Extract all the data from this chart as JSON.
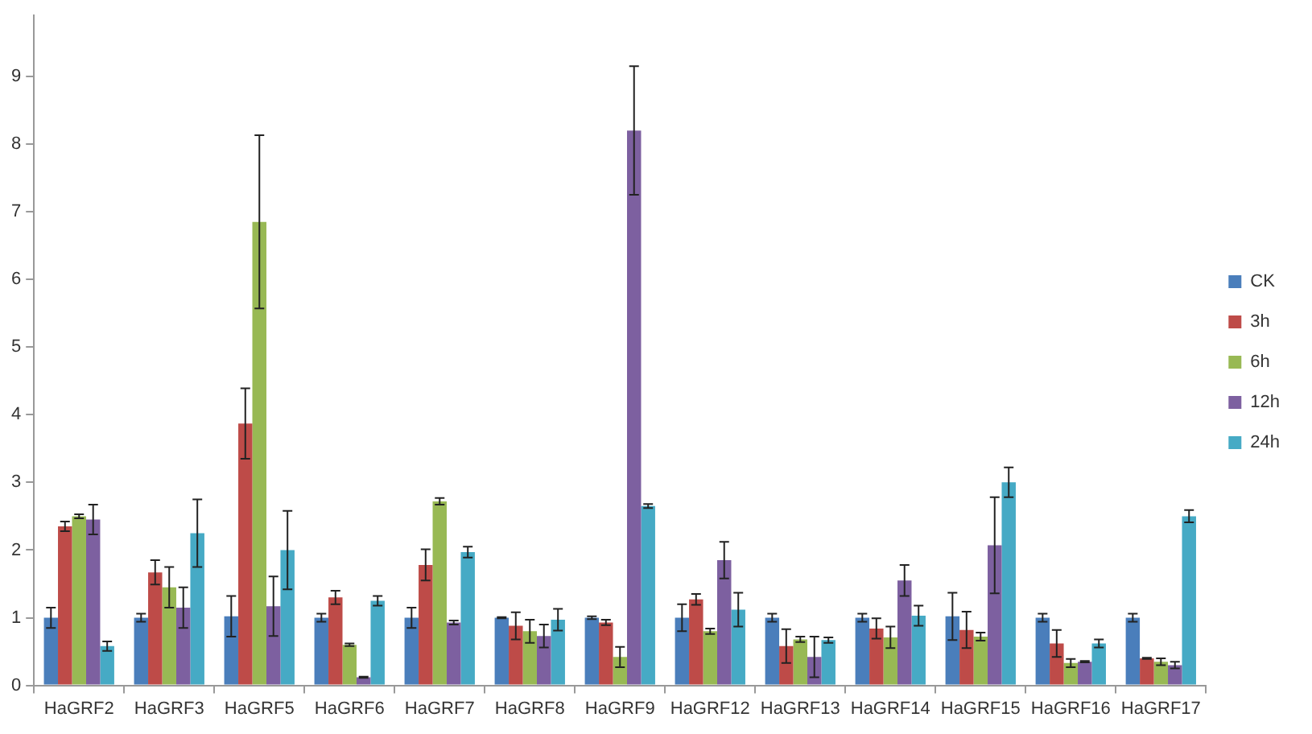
{
  "chart_data": {
    "type": "bar",
    "categories": [
      "HaGRF2",
      "HaGRF3",
      "HaGRF5",
      "HaGRF6",
      "HaGRF7",
      "HaGRF8",
      "HaGRF9",
      "HaGRF12",
      "HaGRF13",
      "HaGRF14",
      "HaGRF15",
      "HaGRF16",
      "HaGRF17"
    ],
    "series": [
      {
        "name": "CK",
        "color": "#4a7ebb",
        "values": [
          1.0,
          1.0,
          1.02,
          1.0,
          1.0,
          1.0,
          1.0,
          1.0,
          1.0,
          1.0,
          1.02,
          1.0,
          1.0
        ],
        "errors": [
          0.15,
          0.06,
          0.3,
          0.06,
          0.15,
          0.01,
          0.02,
          0.2,
          0.06,
          0.06,
          0.35,
          0.06,
          0.06
        ]
      },
      {
        "name": "3h",
        "color": "#be4b48",
        "values": [
          2.35,
          1.67,
          3.87,
          1.3,
          1.78,
          0.88,
          0.93,
          1.27,
          0.58,
          0.84,
          0.82,
          0.62,
          0.4
        ],
        "errors": [
          0.07,
          0.18,
          0.52,
          0.1,
          0.23,
          0.2,
          0.04,
          0.08,
          0.25,
          0.15,
          0.27,
          0.2,
          0.01
        ]
      },
      {
        "name": "6h",
        "color": "#98b954",
        "values": [
          2.5,
          1.45,
          6.85,
          0.6,
          2.72,
          0.8,
          0.42,
          0.8,
          0.68,
          0.71,
          0.72,
          0.33,
          0.35
        ],
        "errors": [
          0.03,
          0.3,
          1.28,
          0.02,
          0.05,
          0.17,
          0.15,
          0.04,
          0.04,
          0.16,
          0.06,
          0.06,
          0.05
        ]
      },
      {
        "name": "12h",
        "color": "#7d60a0",
        "values": [
          2.45,
          1.15,
          1.17,
          0.12,
          0.93,
          0.73,
          8.2,
          1.85,
          0.42,
          1.55,
          2.07,
          0.35,
          0.3
        ],
        "errors": [
          0.22,
          0.3,
          0.44,
          0.01,
          0.03,
          0.17,
          0.95,
          0.27,
          0.3,
          0.23,
          0.71,
          0.01,
          0.05
        ]
      },
      {
        "name": "24h",
        "color": "#46aac5",
        "values": [
          0.58,
          2.25,
          2.0,
          1.25,
          1.97,
          0.97,
          2.65,
          1.12,
          0.67,
          1.03,
          3.0,
          0.62,
          2.5
        ],
        "errors": [
          0.07,
          0.5,
          0.58,
          0.07,
          0.08,
          0.16,
          0.03,
          0.25,
          0.04,
          0.15,
          0.22,
          0.06,
          0.09
        ]
      }
    ],
    "ylim": [
      0,
      9.9
    ],
    "yticks": [
      0,
      1,
      2,
      3,
      4,
      5,
      6,
      7,
      8,
      9
    ],
    "grid": false,
    "legend": "right"
  }
}
